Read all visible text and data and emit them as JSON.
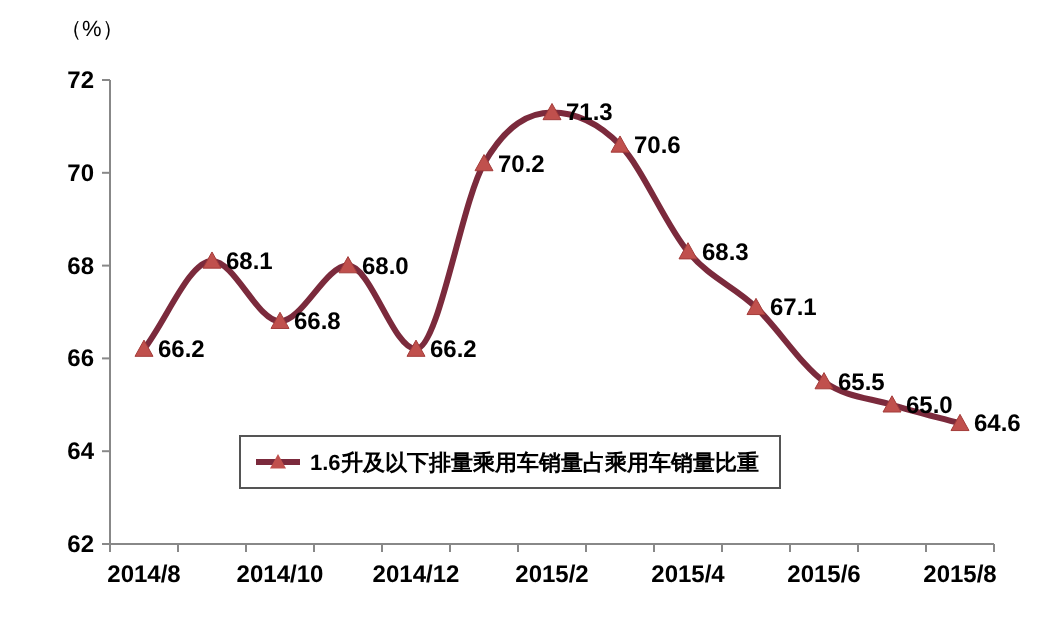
{
  "chart_data": {
    "type": "line",
    "ylabel": "（%）",
    "categories": [
      "2014/8",
      null,
      "2014/10",
      null,
      "2014/12",
      null,
      "2015/2",
      null,
      "2015/4",
      null,
      "2015/6",
      null,
      "2015/8"
    ],
    "series": [
      {
        "name": "1.6升及以下排量乘用车销量占乘用车销量比重",
        "color": "#7b2a3c",
        "values": [
          66.2,
          68.1,
          66.8,
          68.0,
          66.2,
          70.2,
          71.3,
          70.6,
          68.3,
          67.1,
          65.5,
          65.0,
          64.6
        ],
        "value_labels": [
          "66.2",
          "68.1",
          "66.8",
          "68.0",
          "66.2",
          "70.2",
          "71.3",
          "70.6",
          "68.3",
          "67.1",
          "65.5",
          "65.0",
          "64.6"
        ]
      }
    ],
    "ylim": [
      62,
      72
    ],
    "yticks": [
      62,
      64,
      66,
      68,
      70,
      72
    ],
    "marker": "triangle",
    "legend": "bottom",
    "grid": false
  }
}
